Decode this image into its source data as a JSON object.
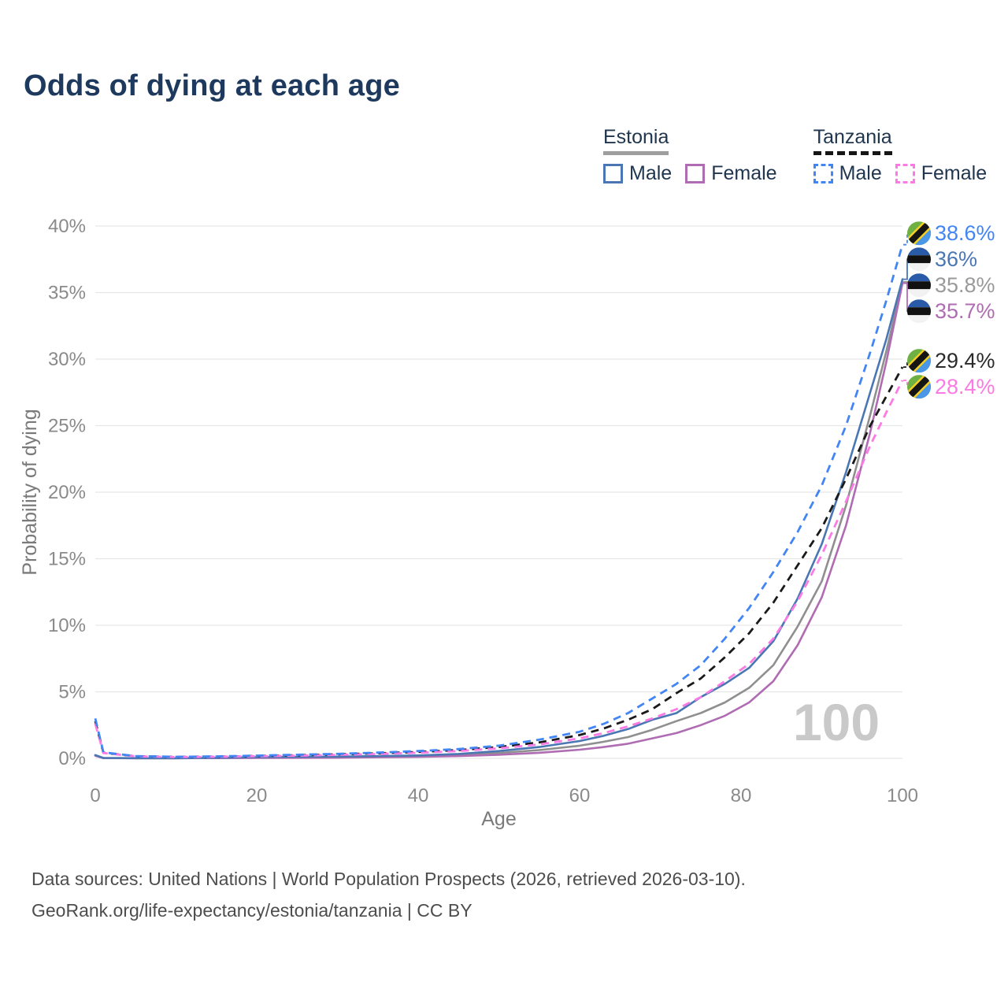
{
  "title": "Odds of dying at each age",
  "legend": {
    "groups": [
      {
        "country": "Estonia",
        "line_style": "solid",
        "underline_color": "#9e9e9e",
        "items": [
          {
            "label": "Male",
            "color": "#4a77b4",
            "dashed": false
          },
          {
            "label": "Female",
            "color": "#af6cb2",
            "dashed": false
          }
        ]
      },
      {
        "country": "Tanzania",
        "line_style": "dashed",
        "underline_color": "#161616",
        "items": [
          {
            "label": "Male",
            "color": "#4285f4",
            "dashed": true
          },
          {
            "label": "Female",
            "color": "#fb7ae3",
            "dashed": true
          }
        ]
      }
    ]
  },
  "chart_data": {
    "type": "line",
    "title": "Odds of dying at each age",
    "xlabel": "Age",
    "ylabel": "Probability of dying",
    "xlim": [
      0,
      100
    ],
    "ylim": [
      0,
      40
    ],
    "grid": "horizontal-only",
    "legend_position": "top-right",
    "watermark": "100",
    "xticks": [
      {
        "value": 0,
        "label": "0"
      },
      {
        "value": 20,
        "label": "20"
      },
      {
        "value": 40,
        "label": "40"
      },
      {
        "value": 60,
        "label": "60"
      },
      {
        "value": 80,
        "label": "80"
      },
      {
        "value": 100,
        "label": "100"
      }
    ],
    "yticks": [
      {
        "value": 0,
        "label": "0%"
      },
      {
        "value": 5,
        "label": "5%"
      },
      {
        "value": 10,
        "label": "10%"
      },
      {
        "value": 15,
        "label": "15%"
      },
      {
        "value": 20,
        "label": "20%"
      },
      {
        "value": 25,
        "label": "25%"
      },
      {
        "value": 30,
        "label": "30%"
      },
      {
        "value": 35,
        "label": "35%"
      },
      {
        "value": 40,
        "label": "40%"
      }
    ],
    "x": [
      0,
      1,
      5,
      10,
      15,
      20,
      25,
      30,
      35,
      40,
      45,
      50,
      55,
      60,
      63,
      66,
      69,
      72,
      75,
      78,
      81,
      84,
      87,
      90,
      93,
      96,
      98,
      100
    ],
    "series": [
      {
        "name": "Estonia (both sexes)",
        "country": "Estonia",
        "sex": "All",
        "flag": "estonia",
        "color": "#8f8f8f",
        "dashed": false,
        "end_label": "35.8%",
        "end_label_color": "#9a9a9a",
        "values": [
          0.23,
          0.025,
          0.01,
          0.01,
          0.03,
          0.06,
          0.08,
          0.09,
          0.12,
          0.17,
          0.25,
          0.4,
          0.62,
          0.95,
          1.25,
          1.6,
          2.15,
          2.8,
          3.4,
          4.2,
          5.3,
          7.0,
          9.9,
          13.3,
          19.0,
          25.8,
          30.6,
          35.8
        ]
      },
      {
        "name": "Estonia Female",
        "country": "Estonia",
        "sex": "Female",
        "flag": "estonia",
        "color": "#af6cb2",
        "dashed": false,
        "end_label": "35.7%",
        "end_label_color": "#af6cb2",
        "values": [
          0.2,
          0.02,
          0.01,
          0.01,
          0.02,
          0.03,
          0.04,
          0.05,
          0.08,
          0.11,
          0.17,
          0.27,
          0.42,
          0.65,
          0.85,
          1.1,
          1.5,
          1.9,
          2.5,
          3.2,
          4.2,
          5.8,
          8.5,
          12.1,
          17.5,
          24.5,
          29.8,
          35.7
        ]
      },
      {
        "name": "Estonia Male",
        "country": "Estonia",
        "sex": "Male",
        "flag": "estonia",
        "color": "#4a77b4",
        "dashed": false,
        "end_label": "36%",
        "end_label_color": "#4a77b4",
        "values": [
          0.25,
          0.03,
          0.01,
          0.01,
          0.04,
          0.09,
          0.11,
          0.13,
          0.17,
          0.22,
          0.33,
          0.55,
          0.85,
          1.3,
          1.7,
          2.2,
          2.9,
          3.4,
          4.6,
          5.6,
          6.8,
          8.8,
          12.0,
          16.1,
          21.5,
          27.5,
          31.5,
          36.0
        ]
      },
      {
        "name": "Tanzania (both sexes)",
        "country": "Tanzania",
        "sex": "All",
        "flag": "tanzania",
        "color": "#1a1a1a",
        "dashed": true,
        "end_label": "29.4%",
        "end_label_color": "#2b2b2b",
        "values": [
          2.8,
          0.42,
          0.16,
          0.11,
          0.13,
          0.18,
          0.23,
          0.3,
          0.38,
          0.48,
          0.62,
          0.85,
          1.2,
          1.75,
          2.25,
          2.9,
          3.7,
          4.9,
          6.0,
          7.6,
          9.4,
          11.7,
          14.5,
          17.3,
          21.0,
          25.0,
          27.2,
          29.4
        ]
      },
      {
        "name": "Tanzania Female",
        "country": "Tanzania",
        "sex": "Female",
        "flag": "tanzania",
        "color": "#fb7ae3",
        "dashed": true,
        "end_label": "28.4%",
        "end_label_color": "#fb7ae3",
        "values": [
          2.6,
          0.4,
          0.15,
          0.1,
          0.12,
          0.16,
          0.2,
          0.26,
          0.33,
          0.42,
          0.55,
          0.75,
          1.05,
          1.5,
          1.9,
          2.4,
          3.0,
          3.7,
          4.6,
          5.8,
          7.1,
          9.0,
          11.8,
          15.3,
          19.3,
          23.5,
          26.0,
          28.4
        ]
      },
      {
        "name": "Tanzania Male",
        "country": "Tanzania",
        "sex": "Male",
        "flag": "tanzania",
        "color": "#4285f4",
        "dashed": true,
        "end_label": "38.6%",
        "end_label_color": "#4285f4",
        "values": [
          3.0,
          0.45,
          0.17,
          0.12,
          0.15,
          0.21,
          0.27,
          0.34,
          0.43,
          0.55,
          0.7,
          0.95,
          1.4,
          2.0,
          2.6,
          3.4,
          4.5,
          5.6,
          7.0,
          9.0,
          11.3,
          14.0,
          17.0,
          20.5,
          25.0,
          30.5,
          34.4,
          38.6
        ]
      }
    ],
    "flags": {
      "estonia": {
        "colors": [
          "#2a5ba8",
          "#111111",
          "#f2f2f2"
        ]
      },
      "tanzania": {
        "colors": [
          "#6fb043",
          "#f5d021",
          "#151515",
          "#4a97e8"
        ]
      }
    }
  },
  "footer": {
    "line1": "Data sources: United Nations | World Population Prospects (2026, retrieved 2026-03-10).",
    "line2": "GeoRank.org/life-expectancy/estonia/tanzania | CC BY"
  }
}
